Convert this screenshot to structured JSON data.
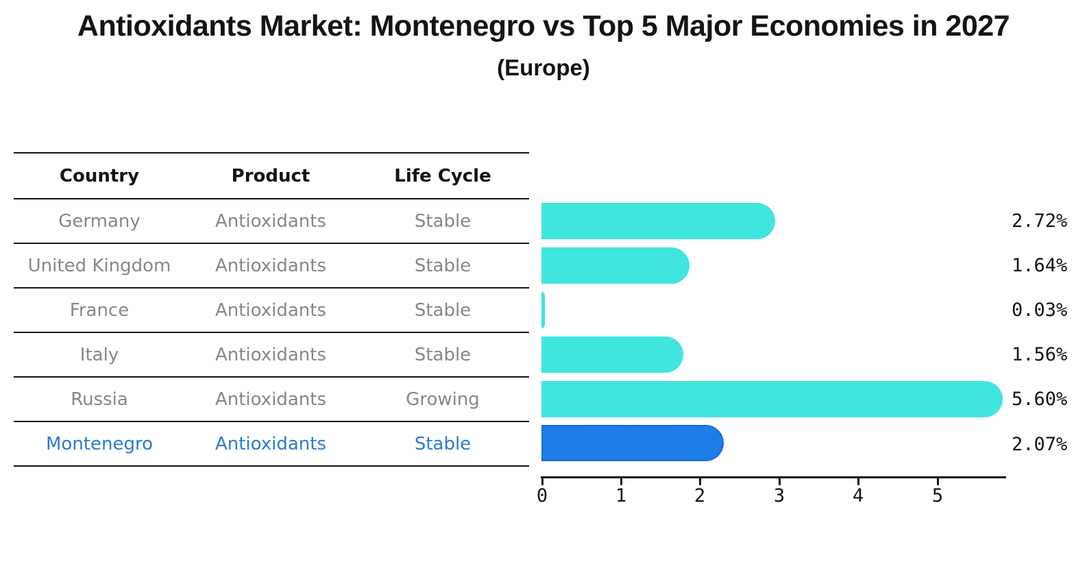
{
  "title": "Antioxidants Market: Montenegro vs Top 5 Major Economies in 2027",
  "subtitle": "(Europe)",
  "table": {
    "headers": {
      "country": "Country",
      "product": "Product",
      "life_cycle": "Life Cycle"
    },
    "rows": [
      {
        "country": "Germany",
        "product": "Antioxidants",
        "life_cycle": "Stable"
      },
      {
        "country": "United Kingdom",
        "product": "Antioxidants",
        "life_cycle": "Stable"
      },
      {
        "country": "France",
        "product": "Antioxidants",
        "life_cycle": "Stable"
      },
      {
        "country": "Italy",
        "product": "Antioxidants",
        "life_cycle": "Stable"
      },
      {
        "country": "Russia",
        "product": "Antioxidants",
        "life_cycle": "Growing"
      },
      {
        "country": "Montenegro",
        "product": "Antioxidants",
        "life_cycle": "Stable"
      }
    ],
    "highlighted_row": "Montenegro"
  },
  "chart_data": {
    "type": "bar",
    "orientation": "horizontal",
    "title": "Antioxidants Market: Montenegro vs Top 5 Major Economies in 2027 (Europe)",
    "categories": [
      "Germany",
      "United Kingdom",
      "France",
      "Italy",
      "Russia",
      "Montenegro"
    ],
    "values": [
      2.72,
      1.64,
      0.03,
      1.56,
      5.6,
      2.07
    ],
    "value_labels": [
      "2.72%",
      "1.64%",
      "0.03%",
      "1.56%",
      "5.60%",
      "2.07%"
    ],
    "x_ticks": [
      "0",
      "1",
      "2",
      "3",
      "4",
      "5"
    ],
    "xlim": [
      0,
      5.87
    ],
    "xlabel": "",
    "ylabel": "",
    "grid": false,
    "legend": "none",
    "bar_colors": [
      "#40E5DE",
      "#40E5DE",
      "#40E5DE",
      "#40E5DE",
      "#40E5DE",
      "#1E7CE6"
    ],
    "highlight_index": 5
  },
  "colors": {
    "bar_default": "#40E5DE",
    "bar_highlight": "#1E7CE6",
    "bar_highlight_border": "#0E5FCC",
    "highlight_text": "#2B7BCE",
    "table_text": "#878787",
    "axis": "#141414"
  }
}
